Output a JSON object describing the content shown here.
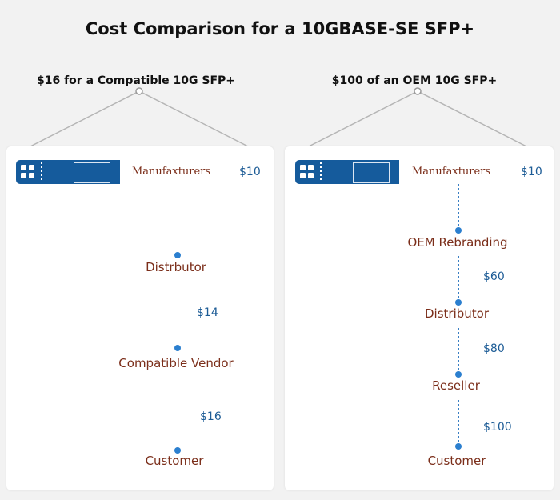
{
  "title": "Cost Comparison for a 10GBASE-SE SFP+",
  "compatible": {
    "heading": "$16 for a Compatible 10G SFP+",
    "manufacturer_label": "Manufaxturers",
    "manufacturer_price": "$10",
    "steps": [
      {
        "label": "Distrbutor",
        "price": "$14"
      },
      {
        "label": "Compatible Vendor",
        "price": "$16"
      },
      {
        "label": "Customer"
      }
    ]
  },
  "oem": {
    "heading": "$100 of an OEM 10G SFP+",
    "manufacturer_label": "Manufaxturers",
    "manufacturer_price": "$10",
    "steps": [
      {
        "label": "OEM Rebranding",
        "price": "$60"
      },
      {
        "label": "Distributor",
        "price": "$80"
      },
      {
        "label": "Reseller",
        "price": "$100"
      },
      {
        "label": "Customer"
      }
    ]
  },
  "colors": {
    "module_blue": "#155b9c",
    "label_brown": "#7b2e1a",
    "price_blue": "#1d5c96",
    "dot_blue": "#2b7fcf"
  }
}
